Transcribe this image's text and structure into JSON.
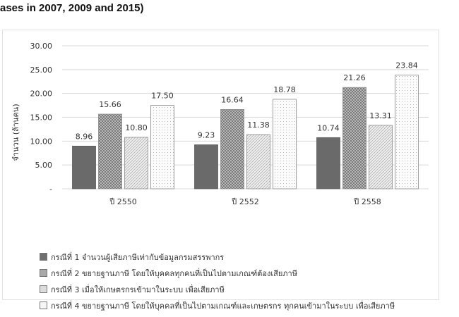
{
  "heading": "ases in 2007, 2009 and 2015)",
  "chart_data": {
    "type": "bar",
    "title": "",
    "xlabel": "",
    "ylabel": "จำนวน (ล้านคน)",
    "ylim": [
      0,
      30
    ],
    "yticks": [
      "-",
      "5.00",
      "10.00",
      "15.00",
      "20.00",
      "25.00",
      "30.00"
    ],
    "categories": [
      "ปี 2550",
      "ปี 2552",
      "ปี 2558"
    ],
    "series": [
      {
        "name": "กรณีที่ 1 จำนวนผู้เสียภาษีเท่ากับข้อมูลกรมสรรพากร",
        "values": [
          8.96,
          9.23,
          10.74
        ],
        "labels": [
          "8.96",
          "9.23",
          "10.74"
        ],
        "fill": "#6e6e6e"
      },
      {
        "name": "กรณีที่ 2 ขยายฐานภาษี โดยให้บุคคลทุกคนที่เป็นไปตามเกณฑ์ต้องเสียภาษี",
        "values": [
          15.66,
          16.64,
          21.26
        ],
        "labels": [
          "15.66",
          "16.64",
          "21.26"
        ],
        "fill": "#a8a8a8"
      },
      {
        "name": "กรณีที่ 3 เมื่อให้เกษตรกรเข้ามาในระบบ เพื่อเสียภาษี",
        "values": [
          10.8,
          11.38,
          13.31
        ],
        "labels": [
          "10.80",
          "11.38",
          "13.31"
        ],
        "fill": "#dcdcdc"
      },
      {
        "name": "กรณีที่ 4 ขยายฐานภาษี โดยให้บุคคลที่เป็นไปตามเกณฑ์และเกษตรกร ทุกคนเข้ามาในระบบ เพื่อเสียภาษี",
        "values": [
          17.5,
          18.78,
          23.84
        ],
        "labels": [
          "17.50",
          "18.78",
          "23.84"
        ],
        "fill": "#f6f6f6"
      }
    ],
    "grid": true,
    "legend_position": "bottom"
  }
}
